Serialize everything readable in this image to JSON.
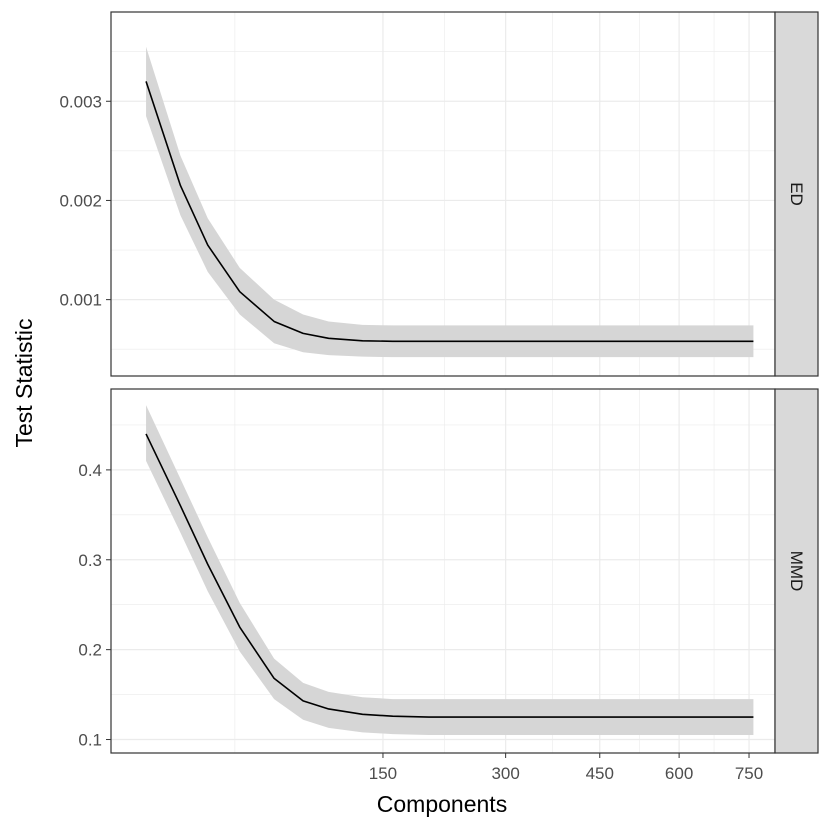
{
  "chart_data": {
    "type": "line",
    "xlabel": "Components",
    "ylabel": "Test Statistic",
    "x_scale": "sqrt",
    "xlim": [
      1,
      810
    ],
    "x_ticks": [
      150,
      300,
      450,
      600,
      750
    ],
    "x_tick_labels": [
      "150",
      "300",
      "450",
      "600",
      "750"
    ],
    "band": "confidence ribbon",
    "colors": {
      "line": "#000000",
      "ribbon": "#d6d6d6",
      "strip": "#d9d9d9",
      "grid": "#ebebeb",
      "border": "#333333"
    },
    "panels": [
      {
        "facet": "ED",
        "ylim": [
          0.00023,
          0.0039
        ],
        "y_ticks": [
          0.001,
          0.002,
          0.003
        ],
        "y_tick_labels": [
          "0.001",
          "0.002",
          "0.003"
        ],
        "x": [
          6,
          15,
          25,
          40,
          60,
          80,
          100,
          130,
          160,
          200,
          300,
          400,
          500,
          600,
          700,
          760
        ],
        "y": [
          0.0032,
          0.00215,
          0.00155,
          0.00108,
          0.00078,
          0.00066,
          0.00061,
          0.000585,
          0.00058,
          0.00058,
          0.00058,
          0.00058,
          0.00058,
          0.00058,
          0.00058,
          0.00058
        ],
        "lower": [
          0.00285,
          0.00185,
          0.00128,
          0.00085,
          0.00056,
          0.00047,
          0.00044,
          0.000425,
          0.00042,
          0.00042,
          0.00042,
          0.00042,
          0.00042,
          0.00042,
          0.00042,
          0.00042
        ],
        "upper": [
          0.00355,
          0.00245,
          0.00182,
          0.00132,
          0.001,
          0.00085,
          0.00078,
          0.000745,
          0.00074,
          0.00074,
          0.00074,
          0.00074,
          0.00074,
          0.00074,
          0.00074,
          0.00074
        ]
      },
      {
        "facet": "MMD",
        "ylim": [
          0.085,
          0.49
        ],
        "y_ticks": [
          0.1,
          0.2,
          0.3,
          0.4
        ],
        "y_tick_labels": [
          "0.1",
          "0.2",
          "0.3",
          "0.4"
        ],
        "x": [
          6,
          15,
          25,
          40,
          60,
          80,
          100,
          130,
          160,
          200,
          300,
          400,
          500,
          600,
          700,
          760
        ],
        "y": [
          0.44,
          0.36,
          0.295,
          0.225,
          0.168,
          0.143,
          0.134,
          0.128,
          0.126,
          0.125,
          0.125,
          0.125,
          0.125,
          0.125,
          0.125,
          0.125
        ],
        "lower": [
          0.41,
          0.33,
          0.265,
          0.198,
          0.145,
          0.122,
          0.113,
          0.108,
          0.106,
          0.105,
          0.105,
          0.105,
          0.105,
          0.105,
          0.105,
          0.105
        ],
        "upper": [
          0.472,
          0.39,
          0.325,
          0.252,
          0.19,
          0.163,
          0.153,
          0.147,
          0.145,
          0.145,
          0.145,
          0.145,
          0.145,
          0.145,
          0.145,
          0.145
        ]
      }
    ]
  }
}
